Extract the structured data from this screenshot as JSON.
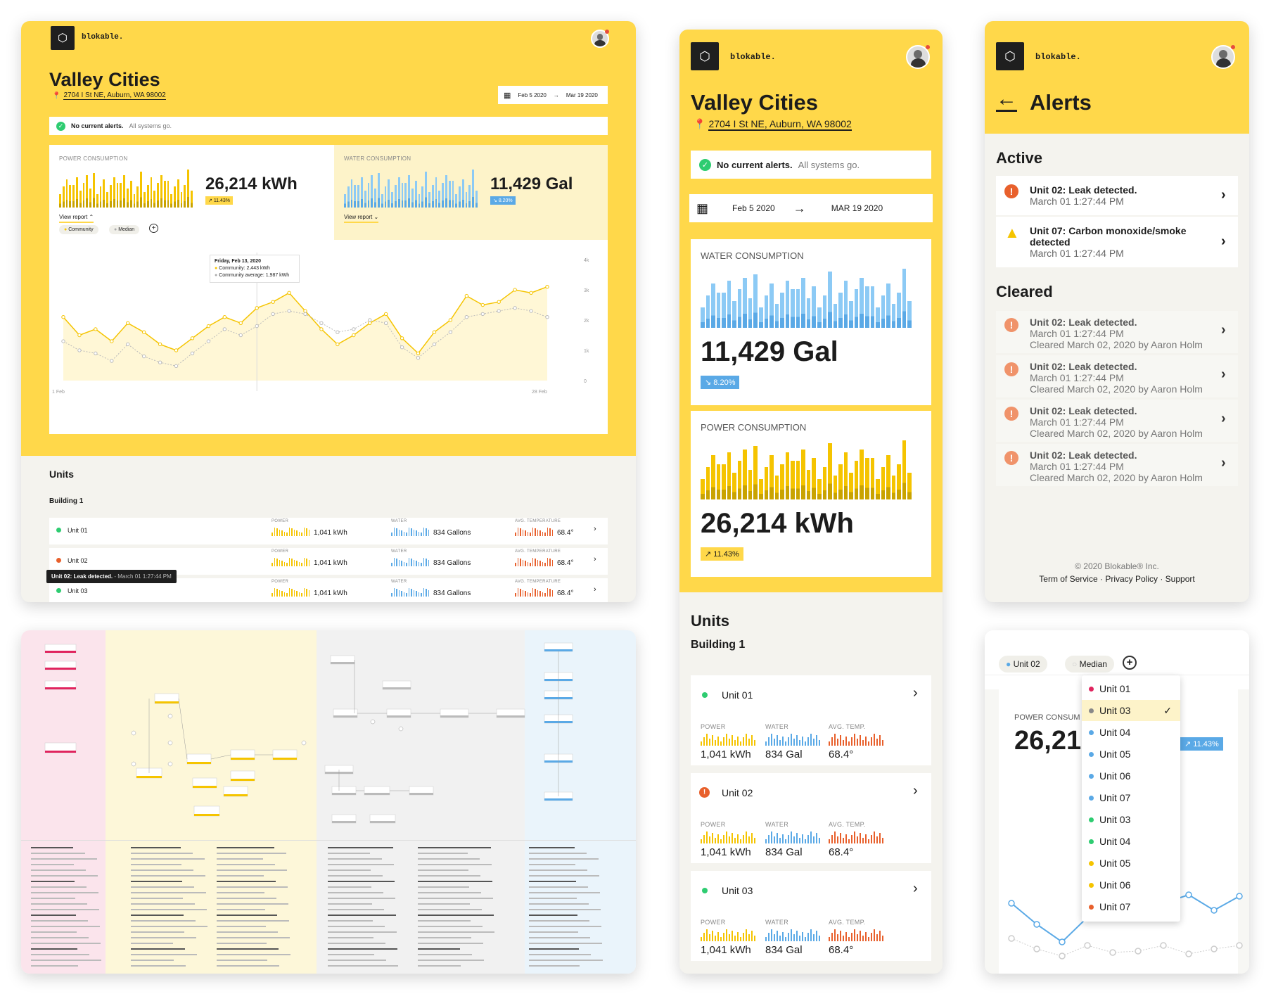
{
  "brand": "blokable.",
  "site": {
    "title": "Valley Cities",
    "address": "2704 I St NE, Auburn, WA 98002"
  },
  "alert_banner": {
    "bold": "No current alerts.",
    "rest": "All systems go."
  },
  "dates": {
    "start": "Feb 5 2020",
    "end_small": "Mar 19 2020",
    "end_large": "MAR 19 2020"
  },
  "power": {
    "label": "POWER CONSUMPTION",
    "value": "26,214 kWh",
    "change": "11.43%",
    "link": "View report"
  },
  "water": {
    "label": "WATER CONSUMPTION",
    "value": "11,429 Gal",
    "change": "8.20%",
    "link": "View report"
  },
  "legend": {
    "community": "Community",
    "median": "Median"
  },
  "tooltip": {
    "date": "Friday, Feb 13, 2020",
    "community": "Community: 2,443 kWh",
    "avg": "Community average: 1,987 kWh"
  },
  "chart_data": {
    "type": "line",
    "x_start_label": "1 Feb",
    "x_end_label": "28 Feb",
    "y_ticks": [
      "4k",
      "3k",
      "2k",
      "1k",
      "0"
    ],
    "ylim": [
      0,
      4000
    ],
    "series": [
      {
        "name": "Community",
        "values": [
          2100,
          1500,
          1700,
          1300,
          1900,
          1600,
          1200,
          1000,
          1400,
          1800,
          2100,
          1900,
          2400,
          2600,
          2900,
          2300,
          1700,
          1200,
          1500,
          1900,
          2200,
          1400,
          900,
          1600,
          2000,
          2800,
          2500,
          2600,
          3000,
          2900,
          3100
        ]
      },
      {
        "name": "Median",
        "values": [
          1300,
          1000,
          900,
          650,
          1200,
          800,
          600,
          480,
          900,
          1300,
          1700,
          1500,
          1800,
          2200,
          2300,
          2200,
          1900,
          1600,
          1700,
          2000,
          1900,
          1100,
          750,
          1200,
          1600,
          2100,
          2200,
          2300,
          2400,
          2300,
          2100
        ]
      }
    ]
  },
  "units": {
    "heading": "Units",
    "building": "Building 1",
    "col_power": "POWER",
    "col_water": "WATER",
    "col_temp": "AVG. TEMPERATURE",
    "col_temp_short": "AVG. TEMP.",
    "rows": [
      {
        "name": "Unit 01",
        "power": "1,041 kWh",
        "water": "834 Gallons",
        "water_short": "834 Gal",
        "temp": "68.4°"
      },
      {
        "name": "Unit 02",
        "power": "1,041 kWh",
        "water": "834 Gallons",
        "water_short": "834 Gal",
        "temp": "68.4°"
      },
      {
        "name": "Unit 03",
        "power": "1,041 kWh",
        "water": "834 Gallons",
        "water_short": "834 Gal",
        "temp": "68.4°"
      }
    ],
    "tooltip_bold": "Unit 02: Leak detected.",
    "tooltip_rest": " - March 01 1:27:44 PM"
  },
  "alerts_page": {
    "title": "Alerts",
    "active": "Active",
    "cleared": "Cleared",
    "active_items": [
      {
        "title": "Unit 02: Leak detected.",
        "time": "March 01 1:27:44 PM"
      },
      {
        "title": "Unit 07: Carbon monoxide/smoke detected",
        "time": "March 01 1:27:44 PM"
      }
    ],
    "cleared_items": [
      {
        "title": "Unit 02: Leak detected.",
        "time": "March 01 1:27:44 PM",
        "by": "Cleared March 02, 2020 by Aaron Holm"
      },
      {
        "title": "Unit 02: Leak detected.",
        "time": "March 01 1:27:44 PM",
        "by": "Cleared March 02, 2020 by Aaron Holm"
      },
      {
        "title": "Unit 02: Leak detected.",
        "time": "March 01 1:27:44 PM",
        "by": "Cleared March 02, 2020 by Aaron Holm"
      },
      {
        "title": "Unit 02: Leak detected.",
        "time": "March 01 1:27:44 PM",
        "by": "Cleared March 02, 2020 by Aaron Holm"
      }
    ],
    "copyright": "© 2020 Blokable® Inc.",
    "terms": "Term of Service",
    "privacy": "Privacy Policy",
    "support": "Support"
  },
  "dropdown": {
    "chip_unit": "Unit 02",
    "chip_median": "Median",
    "power_label": "POWER CONSUM",
    "power_value": "26,21",
    "change": "11.43%",
    "options": [
      {
        "label": "Unit 01",
        "color": "#e0245e"
      },
      {
        "label": "Unit 03",
        "color": "#888888",
        "selected": true
      },
      {
        "label": "Unit 04",
        "color": "#5aa9e6"
      },
      {
        "label": "Unit 05",
        "color": "#5aa9e6"
      },
      {
        "label": "Unit 06",
        "color": "#5aa9e6"
      },
      {
        "label": "Unit 07",
        "color": "#5aa9e6"
      },
      {
        "label": "Unit 03",
        "color": "#2ecc71"
      },
      {
        "label": "Unit 04",
        "color": "#2ecc71"
      },
      {
        "label": "Unit 05",
        "color": "#f5c400"
      },
      {
        "label": "Unit 06",
        "color": "#f5c400"
      },
      {
        "label": "Unit 07",
        "color": "#e8602c"
      }
    ]
  },
  "colors": {
    "yellow": "#ffd84a",
    "blue": "#5aa9e6",
    "orange": "#e8602c",
    "green": "#2ecc71",
    "red": "#e74c3c",
    "dark": "#1f1f1f"
  }
}
